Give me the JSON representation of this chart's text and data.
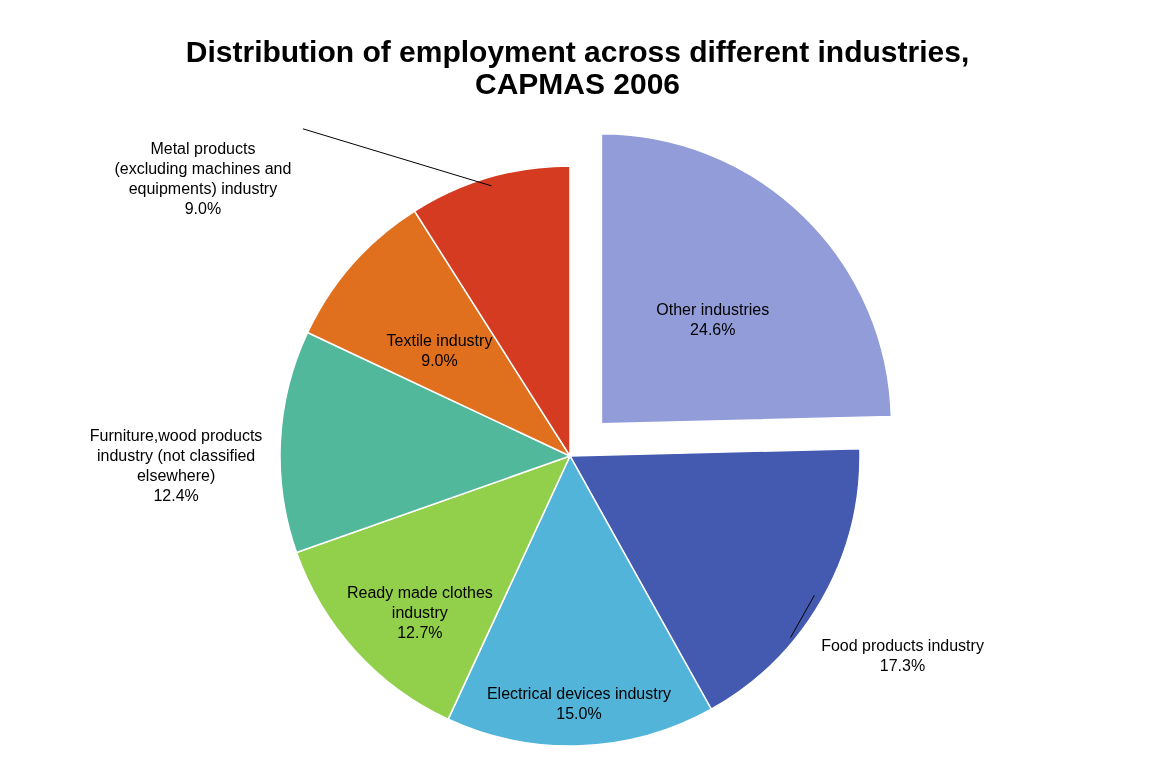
{
  "chart_data": {
    "type": "pie",
    "title": "Distribution of employment across different industries, CAPMAS 2006",
    "categories": [
      "Other industries",
      "Food products industry",
      "Electrical devices industry",
      "Ready made clothes industry",
      "Furniture,wood products industry (not classified elsewhere)",
      "Textile industry",
      "Metal products (excluding machines and equipments) industry"
    ],
    "values": [
      24.6,
      17.3,
      15.0,
      12.7,
      12.4,
      9.0,
      9.0
    ],
    "value_labels": [
      "24.6%",
      "17.3%",
      "15.0%",
      "12.7%",
      "12.4%",
      "9.0%",
      "9.0%"
    ],
    "colors": [
      "#929cd8",
      "#4459b0",
      "#52b4d8",
      "#92cf4a",
      "#52b89c",
      "#e0701e",
      "#d43b20"
    ]
  }
}
